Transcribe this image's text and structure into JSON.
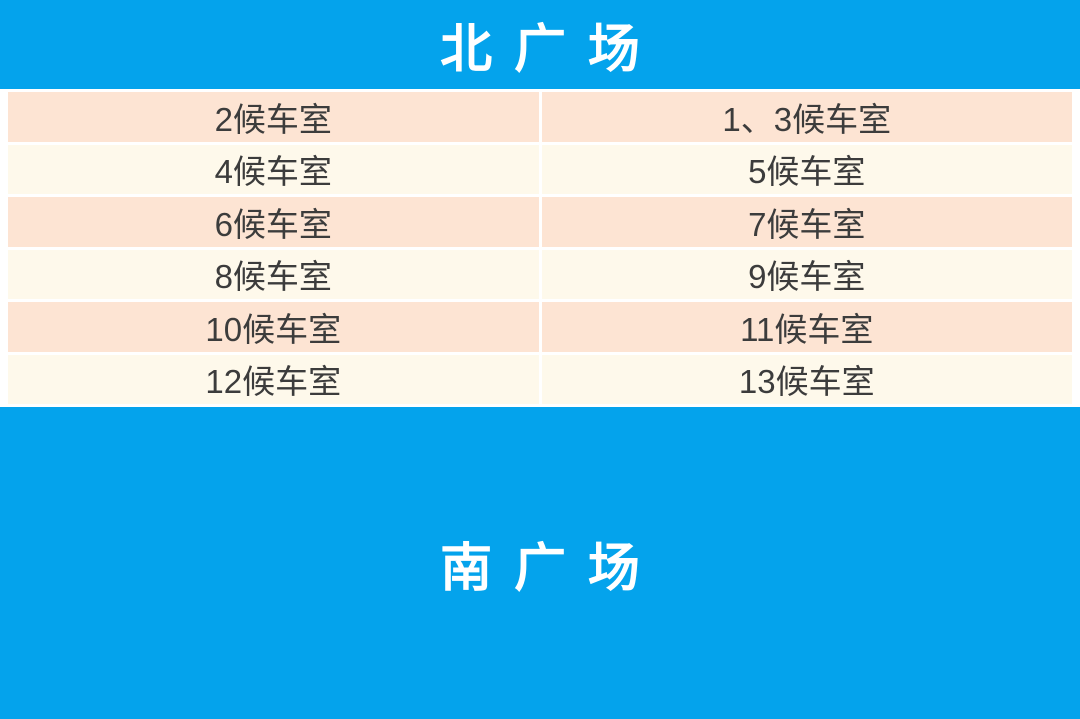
{
  "colors": {
    "banner_blue": "#04A3EC",
    "banner_text": "#FFFFFF",
    "row_peach": "#FDE4D3",
    "row_cream": "#FEF9EB",
    "cell_text": "#3C3C3C",
    "divider_white": "#FFFFFF"
  },
  "north_banner": {
    "label": "北广场"
  },
  "south_banner": {
    "label": "南广场"
  },
  "waiting_rooms": {
    "rows": [
      {
        "left": "2候车室",
        "right": "1、3候车室"
      },
      {
        "left": "4候车室",
        "right": "5候车室"
      },
      {
        "left": "6候车室",
        "right": "7候车室"
      },
      {
        "left": "8候车室",
        "right": "9候车室"
      },
      {
        "left": "10候车室",
        "right": "11候车室"
      },
      {
        "left": "12候车室",
        "right": "13候车室"
      }
    ]
  },
  "chart_data": {
    "type": "table",
    "title": "北广场",
    "footer_title": "南广场",
    "columns": [
      "left",
      "right"
    ],
    "rows": [
      [
        "2候车室",
        "1、3候车室"
      ],
      [
        "4候车室",
        "5候车室"
      ],
      [
        "6候车室",
        "7候车室"
      ],
      [
        "8候车室",
        "9候车室"
      ],
      [
        "10候车室",
        "11候车室"
      ],
      [
        "12候车室",
        "13候车室"
      ]
    ],
    "layout_hints": {
      "header_position": "top-banner",
      "footer_position": "bottom-banner",
      "row_striping": [
        "peach",
        "cream"
      ],
      "grid": "thin-white-dividers"
    }
  }
}
